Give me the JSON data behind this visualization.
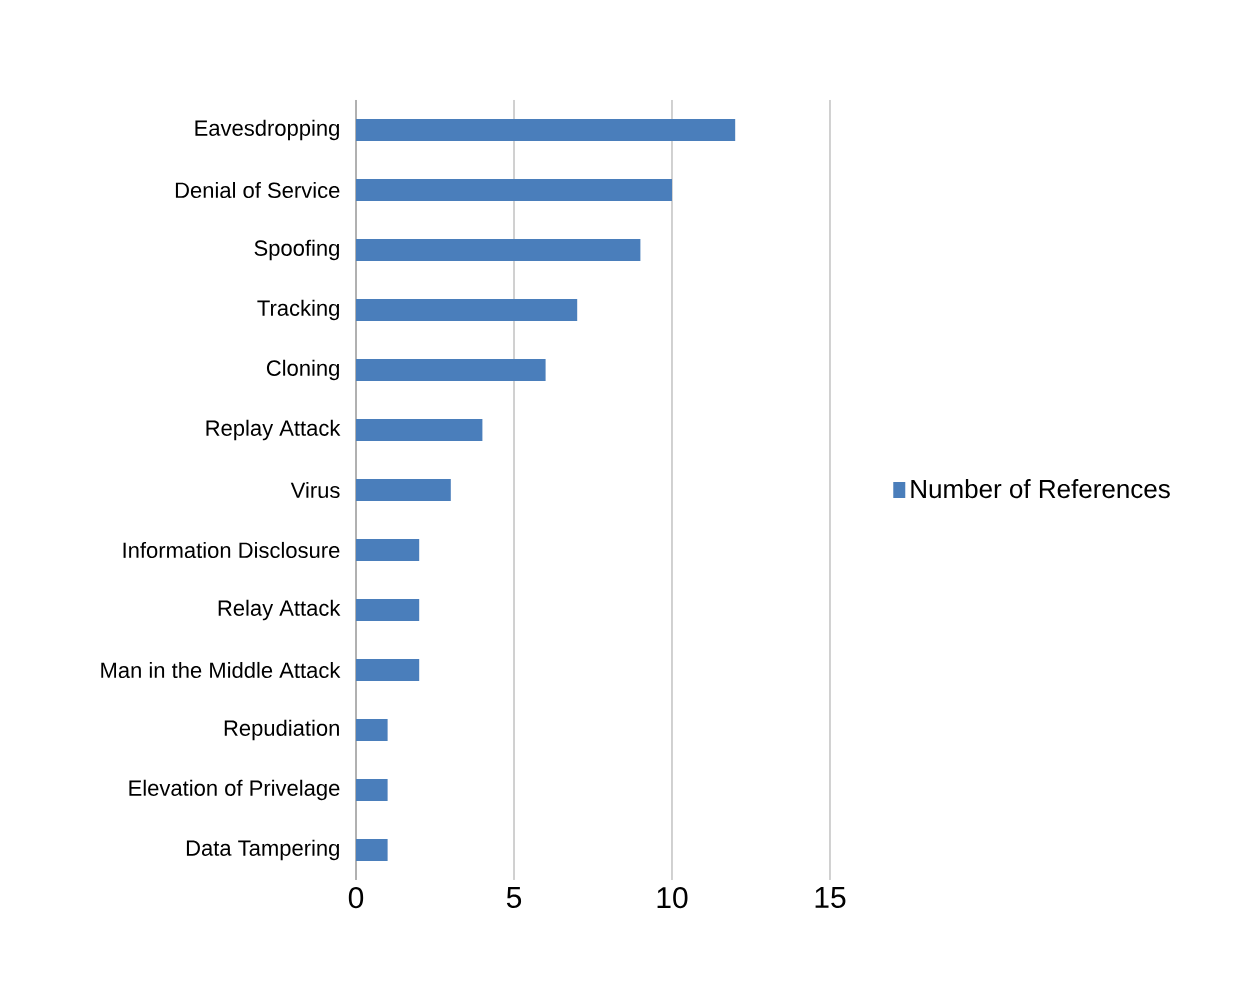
{
  "chart_data": {
    "type": "bar",
    "orientation": "horizontal",
    "categories": [
      "Eavesdropping",
      "Denial of Service",
      "Spoofing",
      "Tracking",
      "Cloning",
      "Replay Attack",
      "Virus",
      "Information Disclosure",
      "Relay Attack",
      "Man  in the Middle Attack",
      "Repudiation",
      "Elevation of Privelage",
      "Data Tampering"
    ],
    "series": [
      {
        "name": "Number of References",
        "color": "#4a7ebb",
        "values": [
          12,
          10,
          9,
          7,
          6,
          4,
          3,
          2,
          2,
          2,
          1,
          1,
          1
        ]
      }
    ],
    "xlim": [
      0,
      15
    ],
    "xticks": [
      0,
      5,
      10,
      15
    ],
    "grid": "x",
    "legend": "right"
  }
}
